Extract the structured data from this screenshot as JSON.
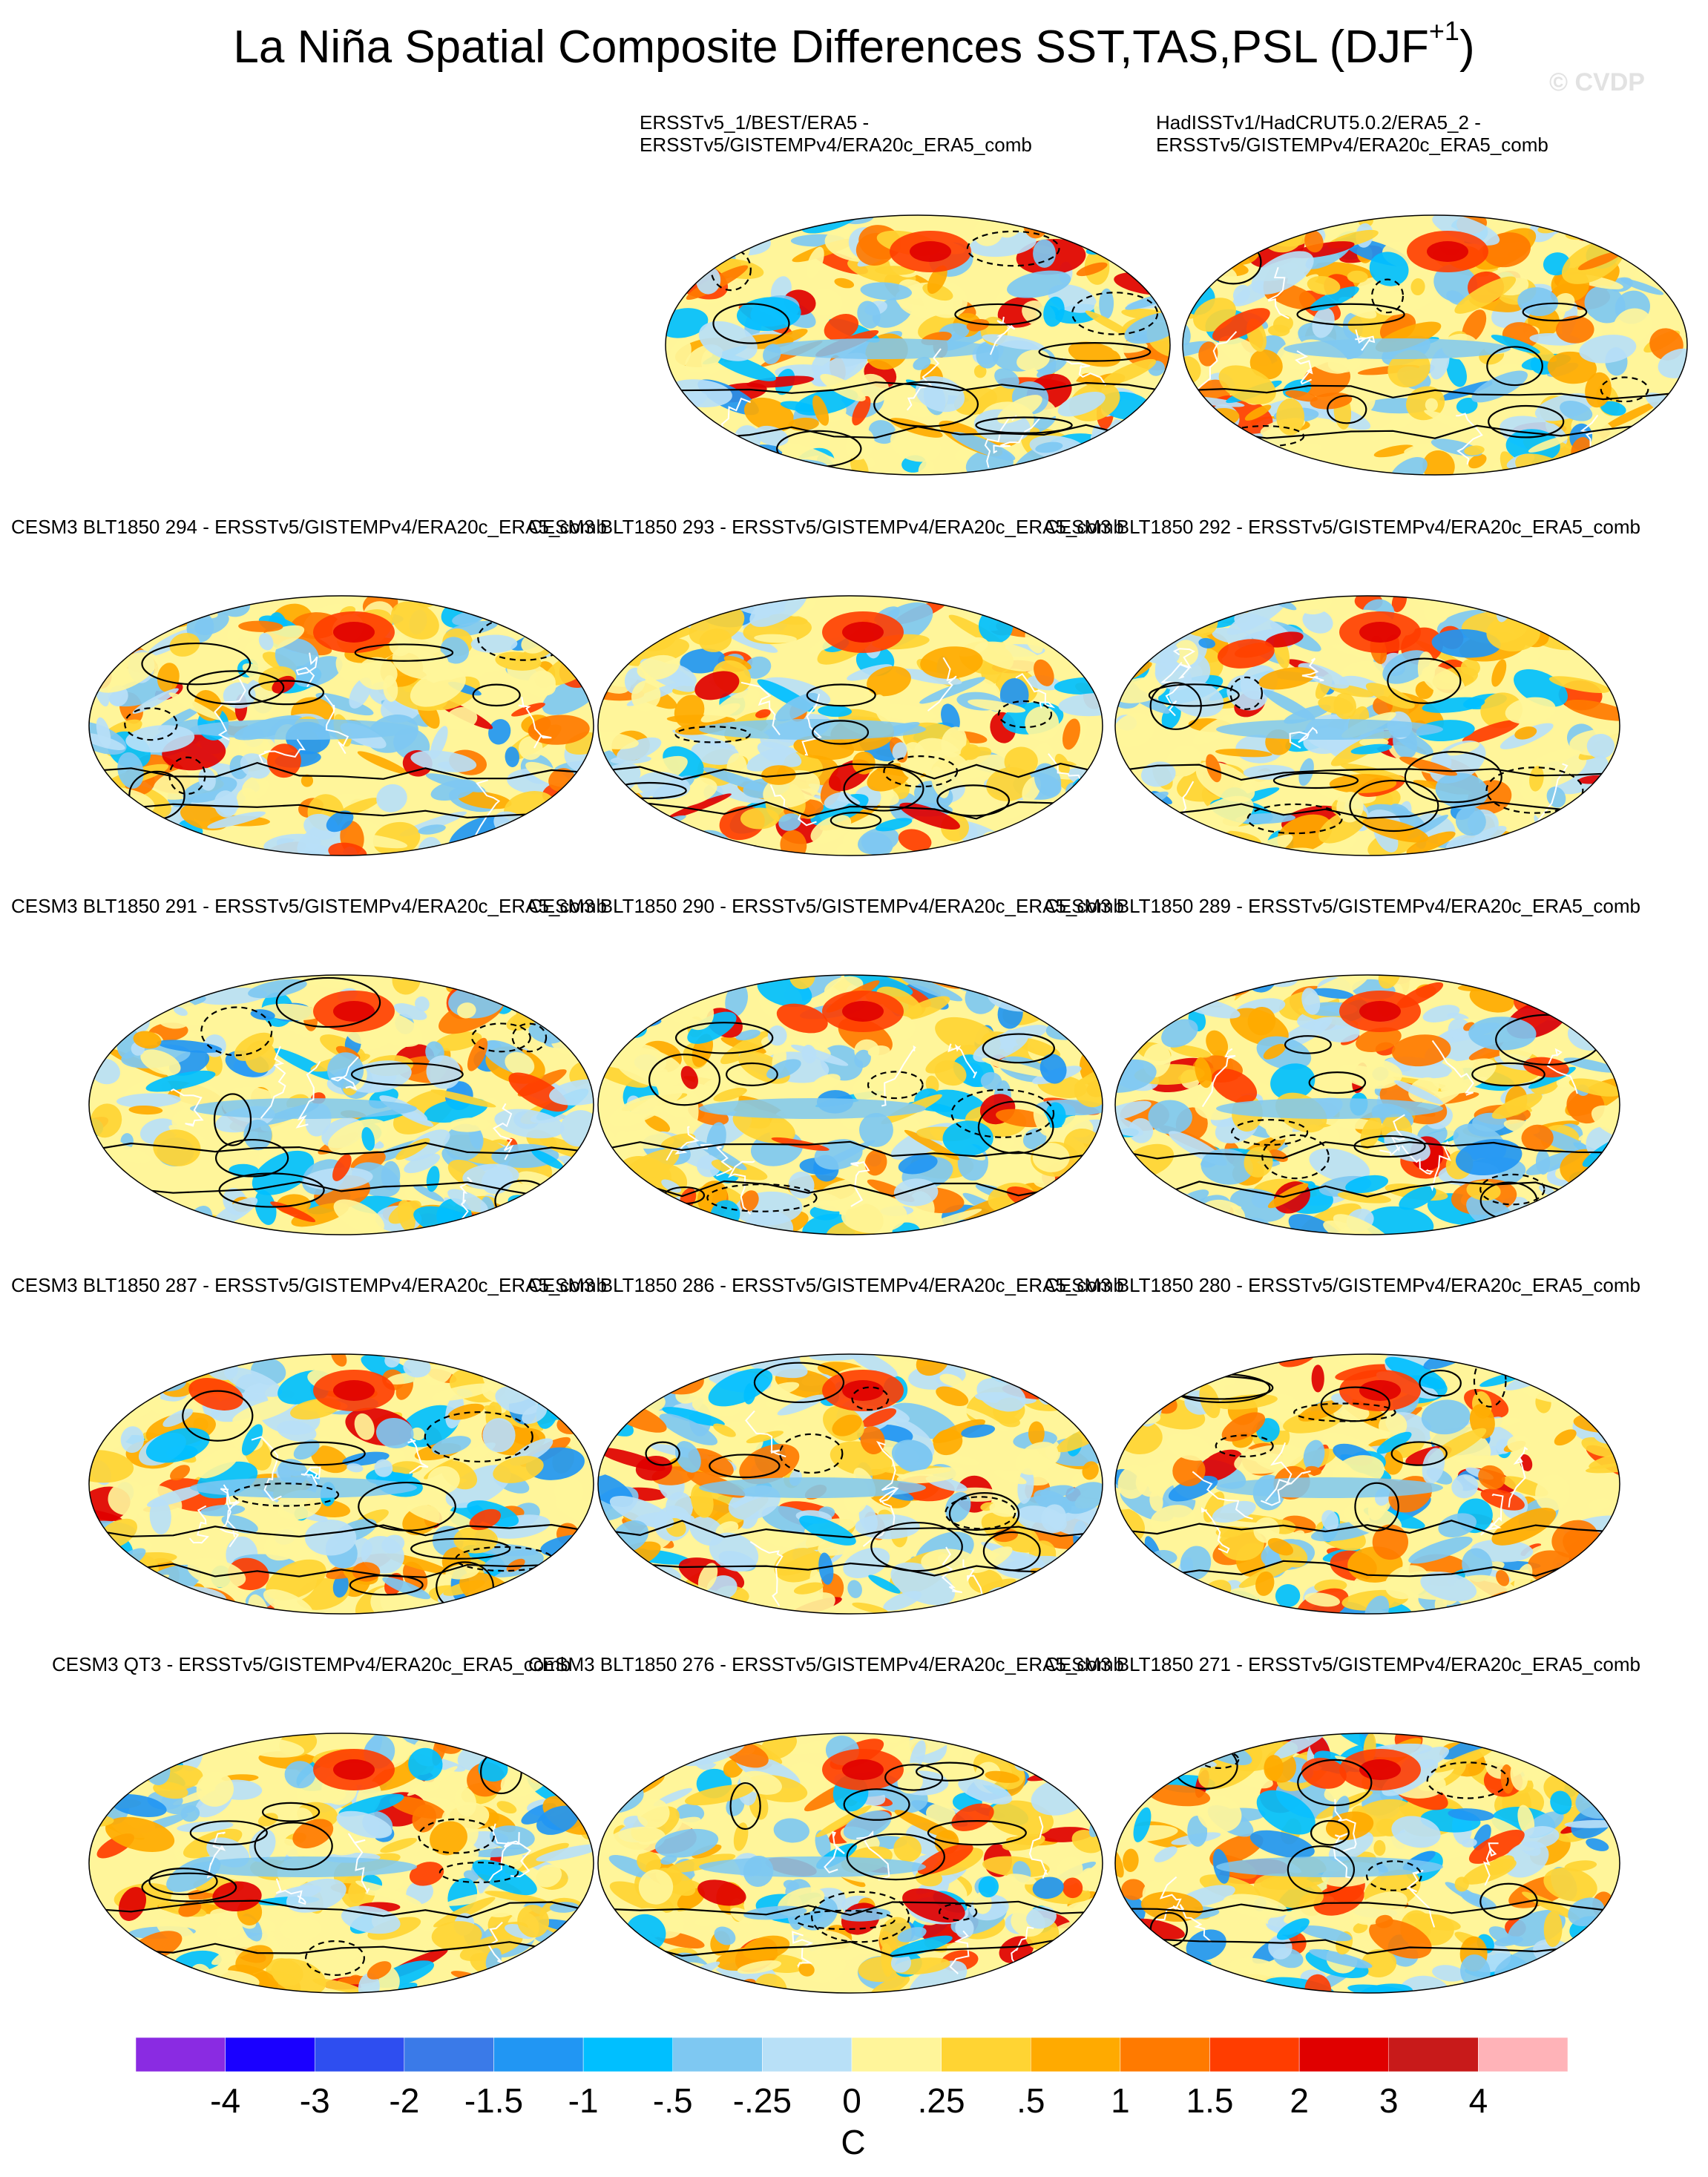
{
  "title": {
    "main": "La Niña Spatial Composite Differences SST,TAS,PSL (DJF",
    "superscript": "+1",
    "close": ")"
  },
  "watermark": "© CVDP",
  "panels": [
    {
      "title": "ERSSTv5_1/BEST/ERA5 -\nERSSTv5/GISTEMPv4/ERA20c_ERA5_comb"
    },
    {
      "title": "HadISSTv1/HadCRUT5.0.2/ERA5_2 -\nERSSTv5/GISTEMPv4/ERA20c_ERA5_comb"
    },
    {
      "title": "CESM3 BLT1850 294 - ERSSTv5/GISTEMPv4/ERA20c_ERA5_comb"
    },
    {
      "title": "CESM3 BLT1850 293 - ERSSTv5/GISTEMPv4/ERA20c_ERA5_comb"
    },
    {
      "title": "CESM3 BLT1850 292 - ERSSTv5/GISTEMPv4/ERA20c_ERA5_comb"
    },
    {
      "title": "CESM3 BLT1850 291 - ERSSTv5/GISTEMPv4/ERA20c_ERA5_comb"
    },
    {
      "title": "CESM3 BLT1850 290 - ERSSTv5/GISTEMPv4/ERA20c_ERA5_comb"
    },
    {
      "title": "CESM3 BLT1850 289 - ERSSTv5/GISTEMPv4/ERA20c_ERA5_comb"
    },
    {
      "title": "CESM3 BLT1850 287 - ERSSTv5/GISTEMPv4/ERA20c_ERA5_comb"
    },
    {
      "title": "CESM3 BLT1850 286 - ERSSTv5/GISTEMPv4/ERA20c_ERA5_comb"
    },
    {
      "title": "CESM3 BLT1850 280 - ERSSTv5/GISTEMPv4/ERA20c_ERA5_comb"
    },
    {
      "title": "CESM3 QT3 - ERSSTv5/GISTEMPv4/ERA20c_ERA5_comb"
    },
    {
      "title": "CESM3 BLT1850 276 - ERSSTv5/GISTEMPv4/ERA20c_ERA5_comb"
    },
    {
      "title": "CESM3 BLT1850 271 - ERSSTv5/GISTEMPv4/ERA20c_ERA5_comb"
    }
  ],
  "chart_data": {
    "type": "heatmap",
    "projection": "robinson",
    "colorbar": {
      "levels": [
        "-4",
        "-3",
        "-2",
        "-1.5",
        "-1",
        "-.5",
        "-.25",
        "0",
        ".25",
        ".5",
        "1",
        "1.5",
        "2",
        "3",
        "4"
      ],
      "colors": [
        "#8a2be2",
        "#1a00ff",
        "#2e4ef0",
        "#3a7ae8",
        "#2196f3",
        "#00bfff",
        "#7ec8f2",
        "#b8e0f7",
        "#fff59a",
        "#ffd433",
        "#ffaa00",
        "#ff7a00",
        "#ff3d00",
        "#e00000",
        "#c81a1a",
        "#ffb3b8"
      ],
      "units": "C"
    },
    "overlay": "PSL contours (solid positive, dashed negative)"
  }
}
